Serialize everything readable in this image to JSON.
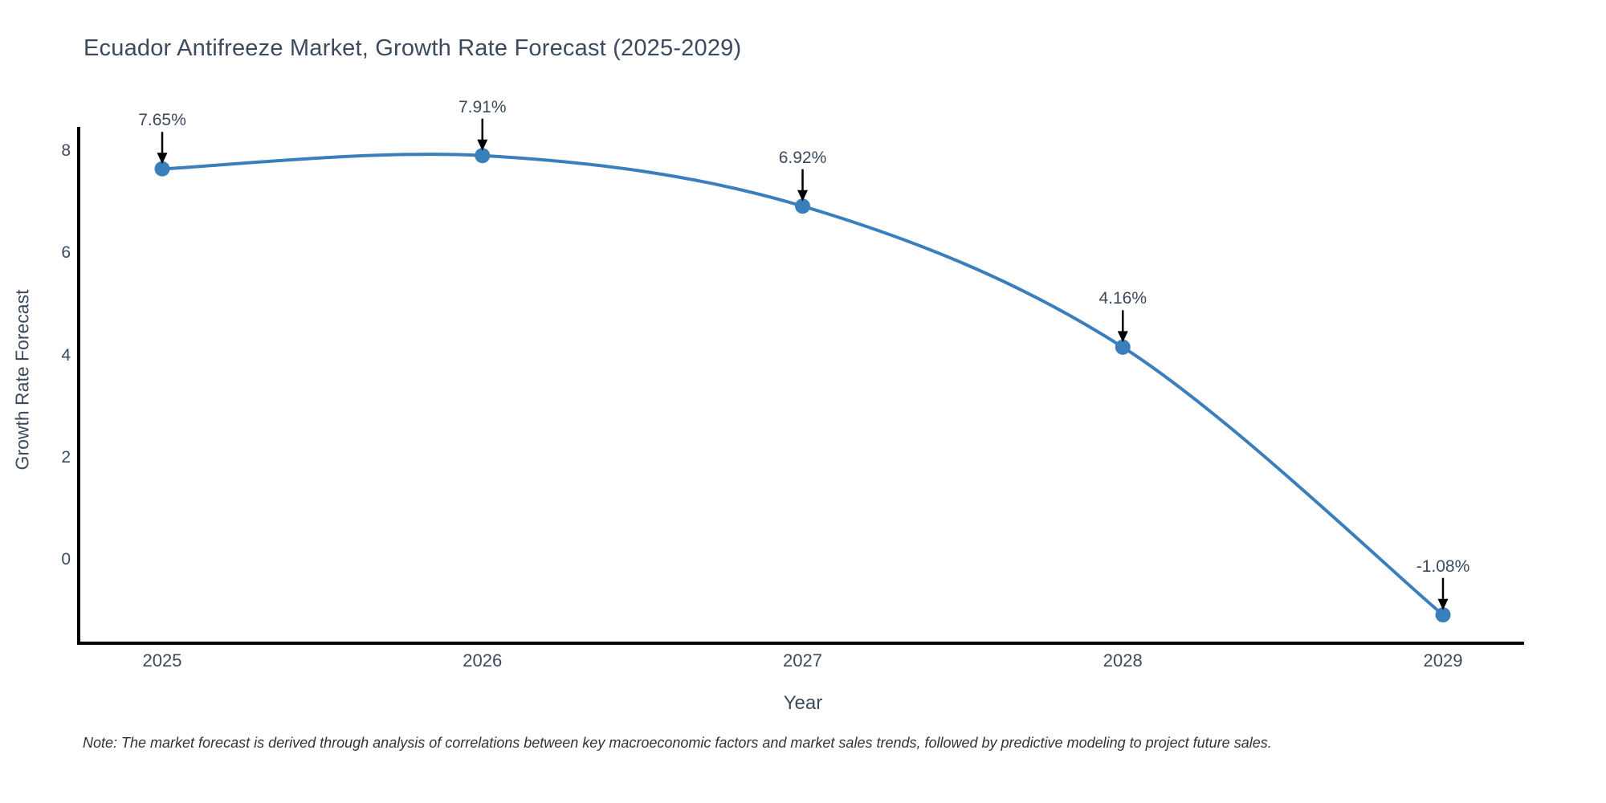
{
  "chart_data": {
    "type": "line",
    "title": "Ecuador Antifreeze Market, Growth Rate Forecast (2025-2029)",
    "xlabel": "Year",
    "ylabel": "Growth Rate Forecast",
    "x": [
      2025,
      2026,
      2027,
      2028,
      2029
    ],
    "values": [
      7.65,
      7.91,
      6.92,
      4.16,
      -1.08
    ],
    "series": [
      {
        "name": "Growth Rate Forecast",
        "values": [
          7.65,
          7.91,
          6.92,
          4.16,
          -1.08
        ]
      }
    ],
    "point_labels": [
      "7.65%",
      "7.91%",
      "6.92%",
      "4.16%",
      "-1.08%"
    ],
    "xticks": [
      "2025",
      "2026",
      "2027",
      "2028",
      "2029"
    ],
    "yticks": [
      8,
      6,
      4,
      2,
      0
    ],
    "ylim": [
      -1.63,
      8.47
    ],
    "grid": false,
    "legend_position": "none",
    "line_color": "#3B7EBC",
    "marker_color": "#3B7EBC",
    "arrow_color": "#000000",
    "axis_color": "#000000",
    "text_color": "#3B4A5C"
  },
  "note": "Note: The market forecast is derived through analysis of correlations between key macroeconomic factors and market sales trends, followed by predictive modeling to project future sales."
}
